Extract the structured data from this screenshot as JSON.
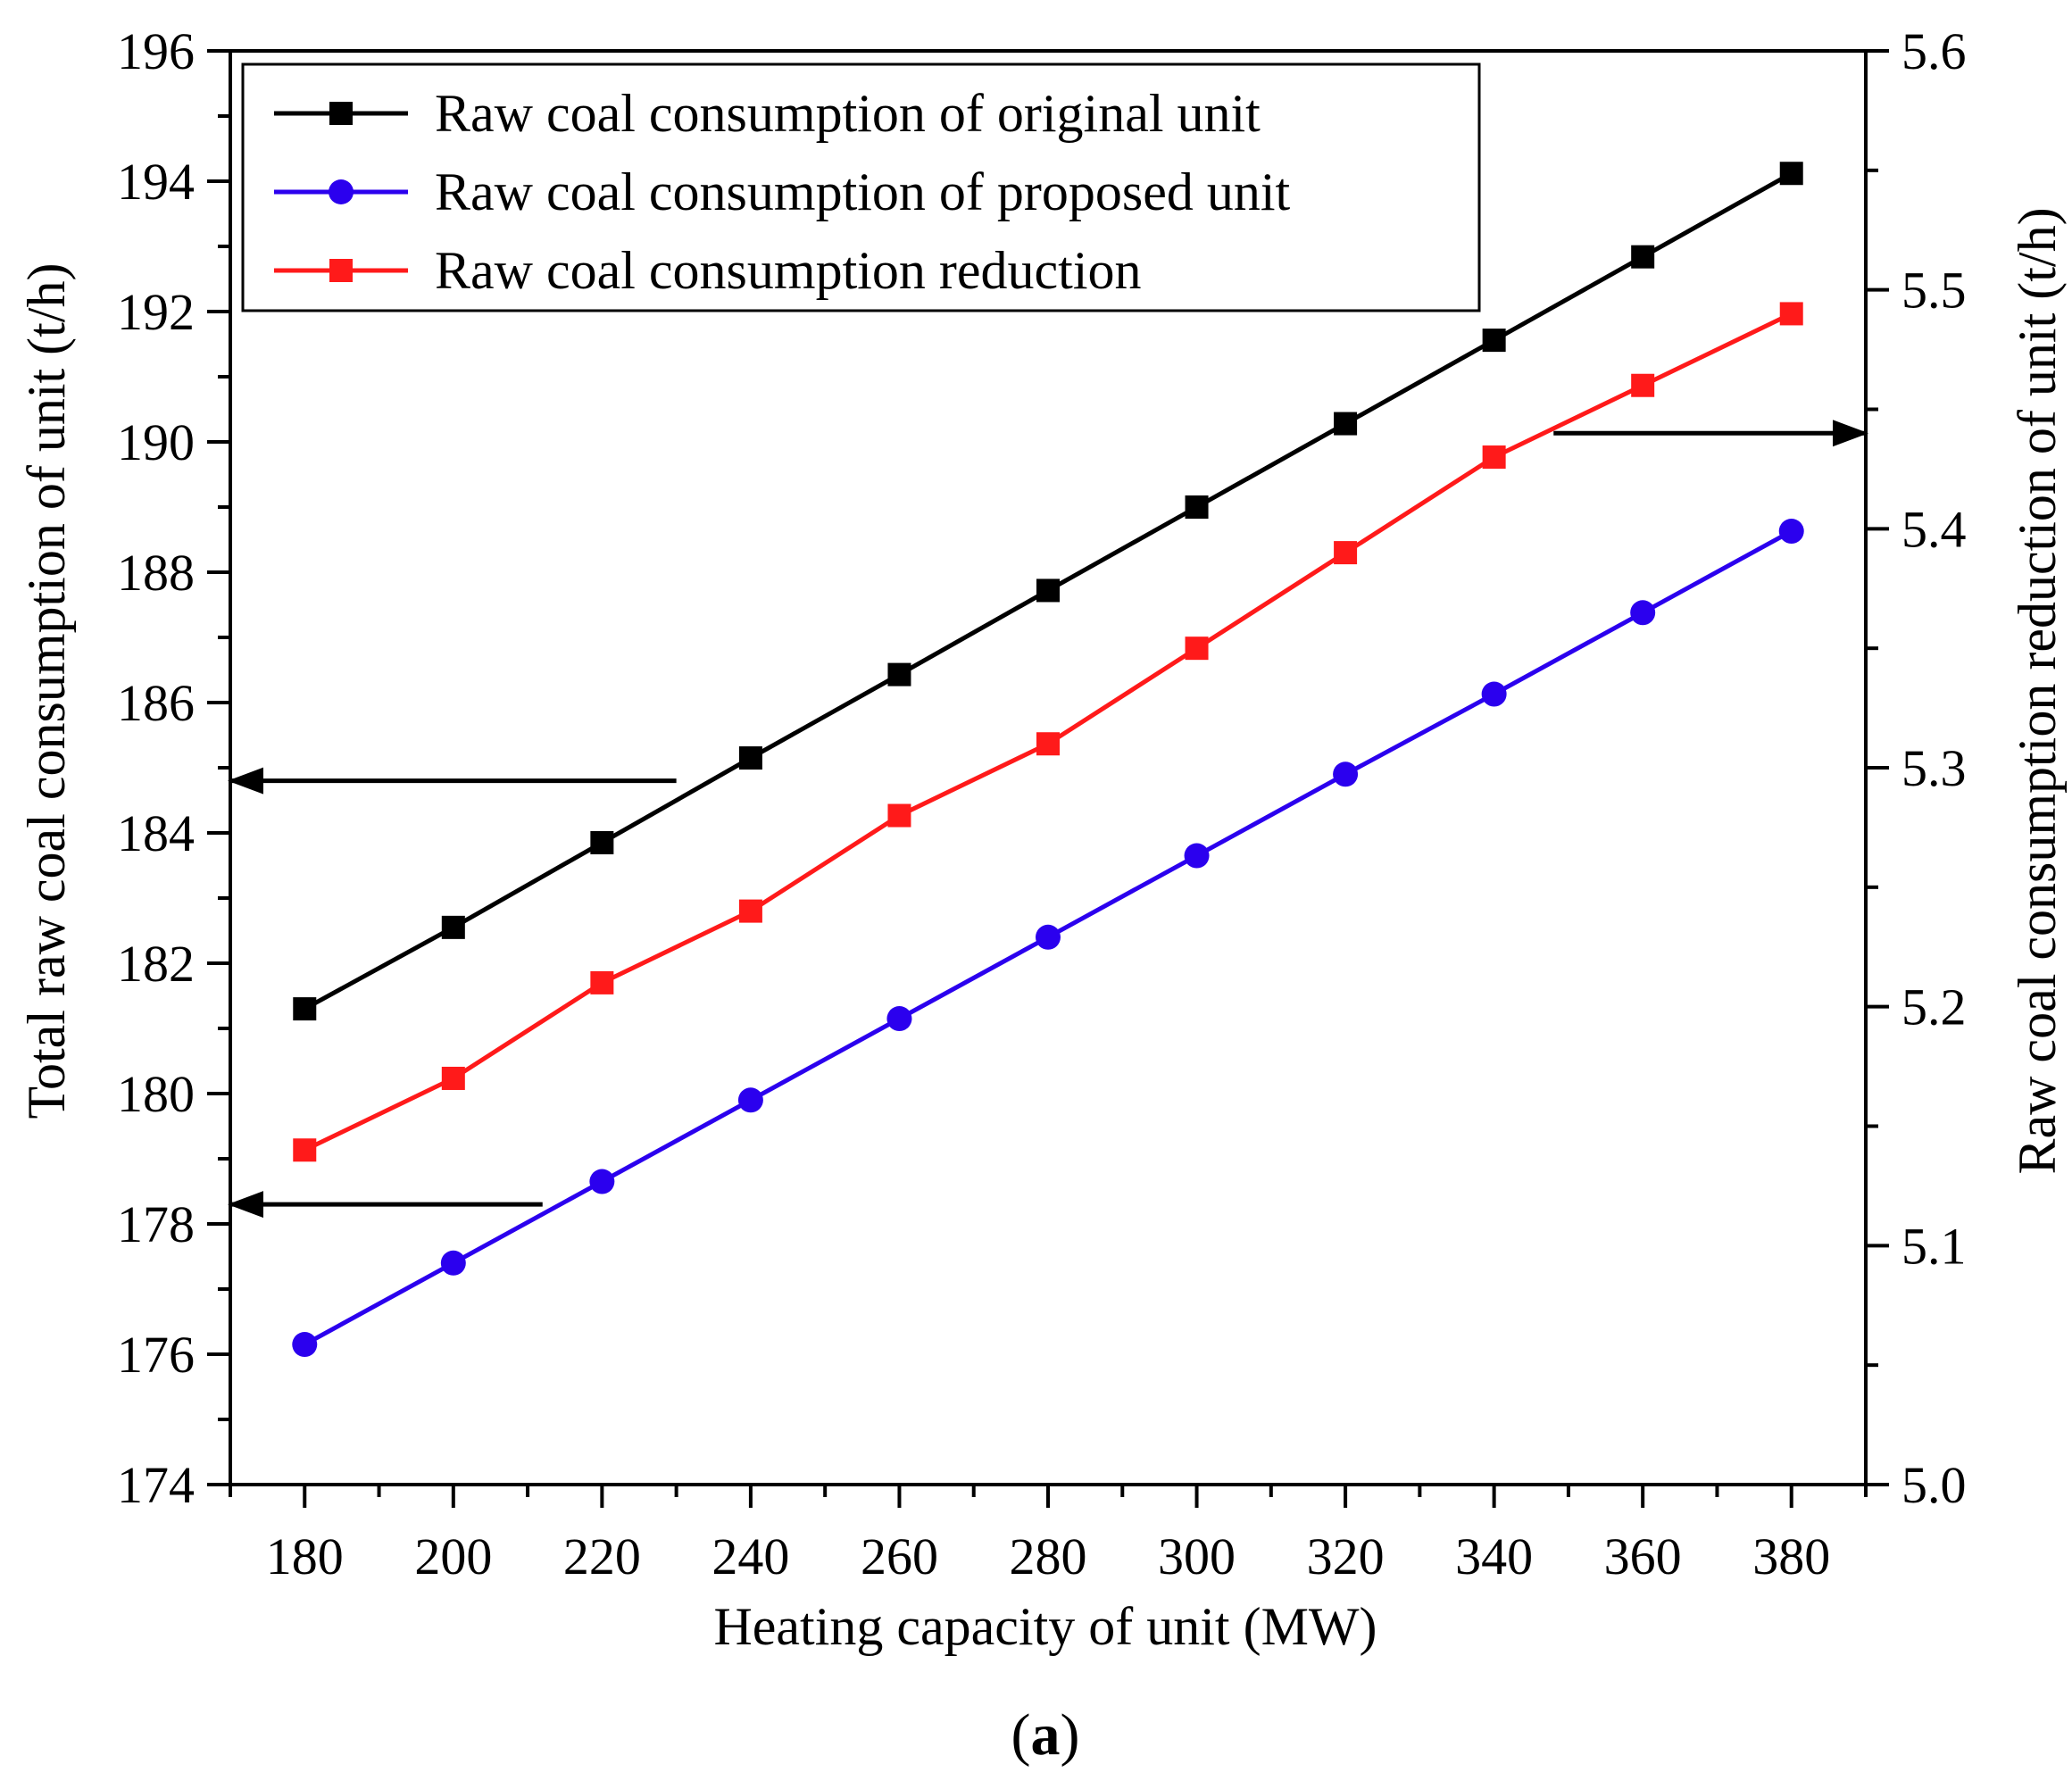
{
  "chart_data": {
    "type": "line",
    "title": "",
    "caption": {
      "open": "(",
      "letter": "a",
      "close": ")"
    },
    "xlabel": "Heating capacity of unit (MW)",
    "ylabel_left": "Total raw coal consumption of unit (t/h)",
    "ylabel_right": "Raw coal consumption reduction of unit (t/h)",
    "xlim": [
      170,
      390
    ],
    "ylim_left": [
      174,
      196
    ],
    "ylim_right": [
      5.0,
      5.6
    ],
    "x": [
      180,
      200,
      220,
      240,
      260,
      280,
      300,
      320,
      340,
      360,
      380
    ],
    "x_ticks": [
      "180",
      "200",
      "220",
      "240",
      "260",
      "280",
      "300",
      "320",
      "340",
      "360",
      "380"
    ],
    "y_left_ticks": [
      "174",
      "176",
      "178",
      "180",
      "182",
      "184",
      "186",
      "188",
      "190",
      "192",
      "194",
      "196"
    ],
    "y_right_ticks": [
      "5.0",
      "5.1",
      "5.2",
      "5.3",
      "5.4",
      "5.5",
      "5.6"
    ],
    "legend_position": "top-left",
    "series": [
      {
        "name": "Raw coal consumption of original unit",
        "axis": "left",
        "color": "#000000",
        "marker": "square",
        "values": [
          181.3,
          182.55,
          183.85,
          185.15,
          186.43,
          187.72,
          189.0,
          190.28,
          191.56,
          192.84,
          194.12
        ]
      },
      {
        "name": "Raw coal consumption of proposed unit",
        "axis": "left",
        "color": "#2b00ee",
        "marker": "circle",
        "values": [
          176.15,
          177.4,
          178.65,
          179.9,
          181.15,
          182.4,
          183.65,
          184.9,
          186.13,
          187.38,
          188.63
        ]
      },
      {
        "name": "Raw coal consumption reduction",
        "axis": "right",
        "color": "#ff1a1a",
        "marker": "square",
        "values": [
          5.14,
          5.17,
          5.21,
          5.24,
          5.28,
          5.31,
          5.35,
          5.39,
          5.43,
          5.46,
          5.49
        ]
      }
    ],
    "annotations": [
      {
        "type": "arrow",
        "direction": "left",
        "points_to": "left axis",
        "y_value": 184.8,
        "x_from": 230
      },
      {
        "type": "arrow",
        "direction": "left",
        "points_to": "left axis",
        "y_value": 178.3,
        "x_from": 212
      },
      {
        "type": "arrow",
        "direction": "right",
        "points_to": "right axis",
        "y_value": 5.44,
        "x_from": 348
      }
    ]
  }
}
